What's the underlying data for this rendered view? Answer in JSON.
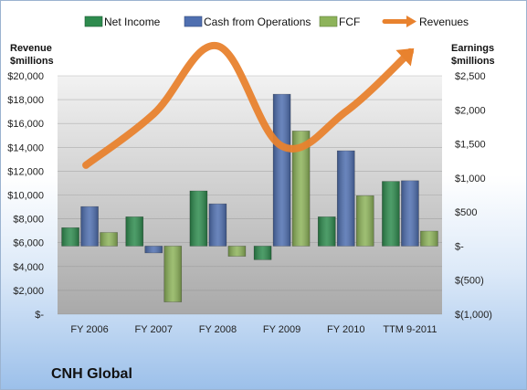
{
  "chart_data": {
    "type": "bar",
    "title": "CNH Global",
    "categories": [
      "FY 2006",
      "FY 2007",
      "FY 2008",
      "FY 2009",
      "FY 2010",
      "TTM 9-2011"
    ],
    "left_axis": {
      "label_line1": "Revenue",
      "label_line2": "$millions",
      "ylim": [
        0,
        20000
      ],
      "ticks": [
        0,
        2000,
        4000,
        6000,
        8000,
        10000,
        12000,
        14000,
        16000,
        18000,
        20000
      ],
      "tick_labels": [
        "$-",
        "$2,000",
        "$4,000",
        "$6,000",
        "$8,000",
        "$10,000",
        "$12,000",
        "$14,000",
        "$16,000",
        "$18,000",
        "$20,000"
      ]
    },
    "right_axis": {
      "label_line1": "Earnings",
      "label_line2": "$millions",
      "ylim": [
        -1000,
        2500
      ],
      "ticks": [
        -1000,
        -500,
        0,
        500,
        1000,
        1500,
        2000,
        2500
      ],
      "tick_labels": [
        "$(1,000)",
        "$(500)",
        "$-",
        "$500",
        "$1,000",
        "$1,500",
        "$2,000",
        "$2,500"
      ]
    },
    "series": [
      {
        "name": "Net Income",
        "axis": "right",
        "kind": "bar",
        "color": "#2e8b4e",
        "values": [
          270,
          430,
          810,
          -200,
          430,
          950
        ]
      },
      {
        "name": "Cash from Operations",
        "axis": "right",
        "kind": "bar",
        "color": "#4f6fb0",
        "values": [
          580,
          -100,
          620,
          2230,
          1400,
          960
        ]
      },
      {
        "name": "FCF",
        "axis": "right",
        "kind": "bar",
        "color": "#8db35a",
        "values": [
          200,
          -820,
          -150,
          1690,
          740,
          220
        ]
      },
      {
        "name": "Revenues",
        "axis": "left",
        "kind": "line",
        "color": "#e8822e",
        "values": [
          12500,
          16800,
          22500,
          14100,
          17000,
          22000
        ]
      }
    ],
    "legend_position": "top",
    "grid": true
  }
}
